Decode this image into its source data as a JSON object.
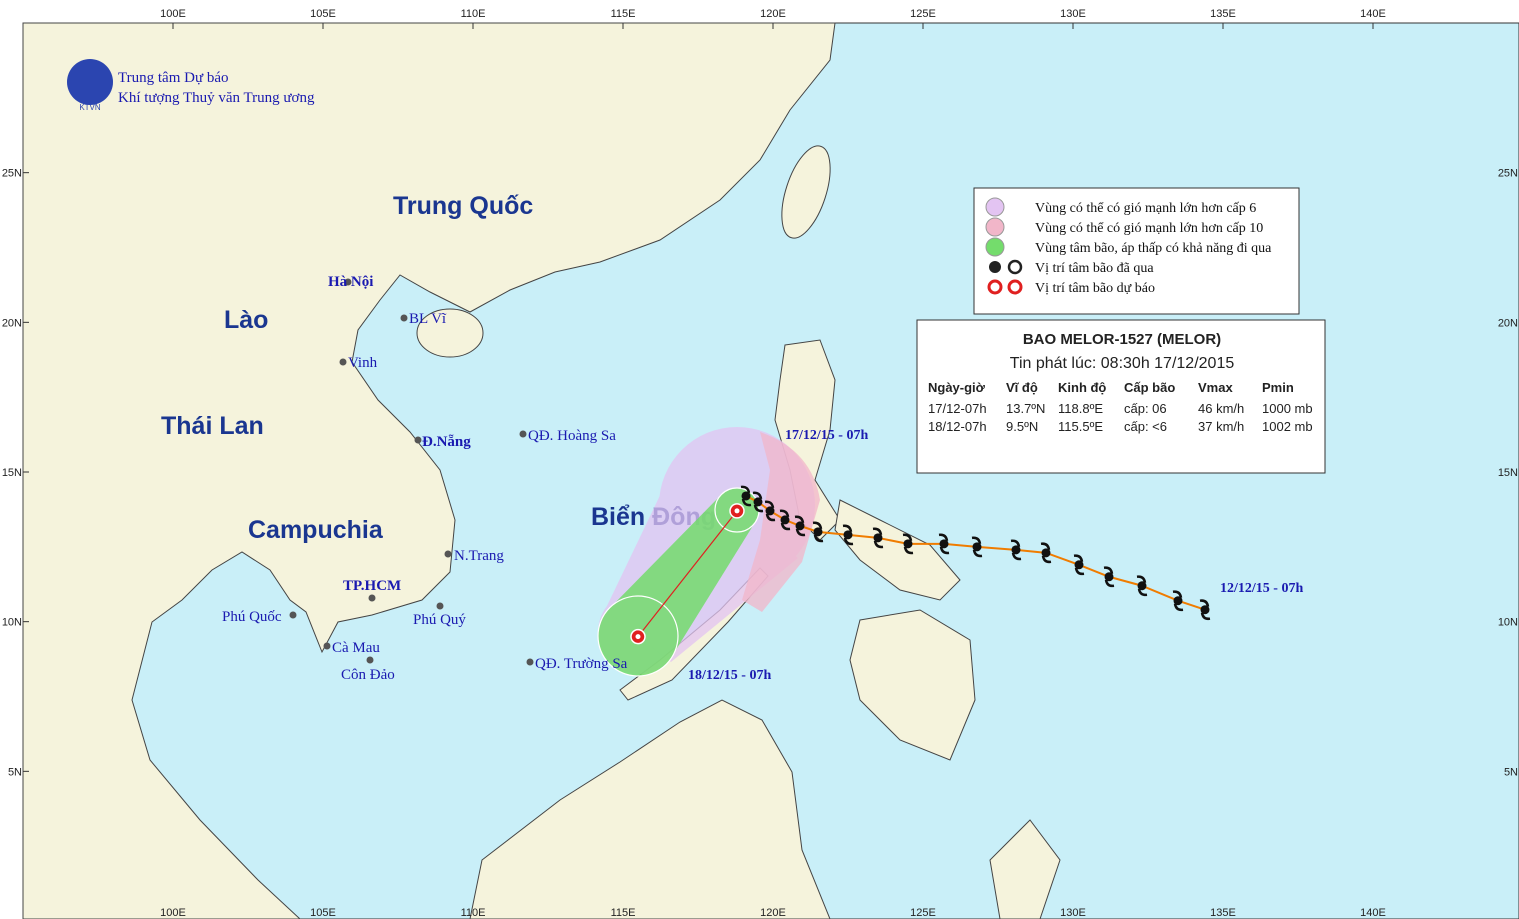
{
  "map": {
    "xlim": [
      95,
      145
    ],
    "ylim": [
      0,
      30
    ],
    "xticks": [
      {
        "value": 100,
        "label": "100E"
      },
      {
        "value": 105,
        "label": "105E"
      },
      {
        "value": 110,
        "label": "110E"
      },
      {
        "value": 115,
        "label": "115E"
      },
      {
        "value": 120,
        "label": "120E"
      },
      {
        "value": 125,
        "label": "125E"
      },
      {
        "value": 130,
        "label": "130E"
      },
      {
        "value": 135,
        "label": "135E"
      },
      {
        "value": 140,
        "label": "140E"
      }
    ],
    "yticks": [
      {
        "value": 5,
        "label": "5N"
      },
      {
        "value": 10,
        "label": "10N"
      },
      {
        "value": 15,
        "label": "15N"
      },
      {
        "value": 20,
        "label": "20N"
      },
      {
        "value": 25,
        "label": "25N"
      }
    ]
  },
  "header": {
    "line1": "Trung tâm Dự báo",
    "line2": "Khí tượng Thuỷ văn Trung ương",
    "logo": "KTVN"
  },
  "legend": [
    "Vùng có thể có gió mạnh lớn hơn cấp 6",
    "Vùng có thể có gió mạnh lớn hơn cấp 10",
    "Vùng tâm bão, áp thấp có khả năng đi qua",
    "Vị trí tâm bão đã qua",
    "Vị trí tâm bão dự báo"
  ],
  "info": {
    "title": "BAO MELOR-1527 (MELOR)",
    "issued": "Tin phát lúc: 08:30h 17/12/2015",
    "columns": [
      "Ngày-giờ",
      "Vĩ độ",
      "Kinh độ",
      "Cấp bão",
      "Vmax",
      "Pmin"
    ],
    "rows": [
      [
        "17/12-07h",
        "13.7ºN",
        "118.8ºE",
        "cấp: 06",
        "46 km/h",
        "1000 mb"
      ],
      [
        "18/12-07h",
        "9.5ºN",
        "115.5ºE",
        "cấp: <6",
        "37 km/h",
        "1002 mb"
      ]
    ]
  },
  "countries": [
    "Trung Quốc",
    "Lào",
    "Thái Lan",
    "Campuchia",
    "Biển Đông"
  ],
  "places": [
    "Hà Nội",
    "BL Vĩ",
    "Vinh",
    "Đ.Nẵng",
    "QĐ. Hoàng Sa",
    "N.Trang",
    "TP.HCM",
    "Phú Quốc",
    "Phú Quý",
    "Cà Mau",
    "Côn Đảo",
    "QĐ. Trường Sa"
  ],
  "date_labels": [
    "17/12/15 - 07h",
    "18/12/15 - 07h",
    "12/12/15 - 07h"
  ],
  "track": {
    "past": [
      {
        "lon": 134.4,
        "lat": 10.4
      },
      {
        "lon": 133.5,
        "lat": 10.7
      },
      {
        "lon": 132.3,
        "lat": 11.2
      },
      {
        "lon": 131.2,
        "lat": 11.5
      },
      {
        "lon": 130.2,
        "lat": 11.9
      },
      {
        "lon": 129.1,
        "lat": 12.3
      },
      {
        "lon": 128.1,
        "lat": 12.4
      },
      {
        "lon": 126.8,
        "lat": 12.5
      },
      {
        "lon": 125.7,
        "lat": 12.6
      },
      {
        "lon": 124.5,
        "lat": 12.6
      },
      {
        "lon": 123.5,
        "lat": 12.8
      },
      {
        "lon": 122.5,
        "lat": 12.9
      },
      {
        "lon": 121.5,
        "lat": 13.0
      },
      {
        "lon": 120.9,
        "lat": 13.2
      },
      {
        "lon": 120.4,
        "lat": 13.4
      },
      {
        "lon": 119.9,
        "lat": 13.7
      },
      {
        "lon": 119.5,
        "lat": 14.0
      },
      {
        "lon": 119.1,
        "lat": 14.2
      }
    ],
    "forecast": [
      {
        "lon": 118.8,
        "lat": 13.7
      },
      {
        "lon": 115.5,
        "lat": 9.5
      }
    ]
  }
}
